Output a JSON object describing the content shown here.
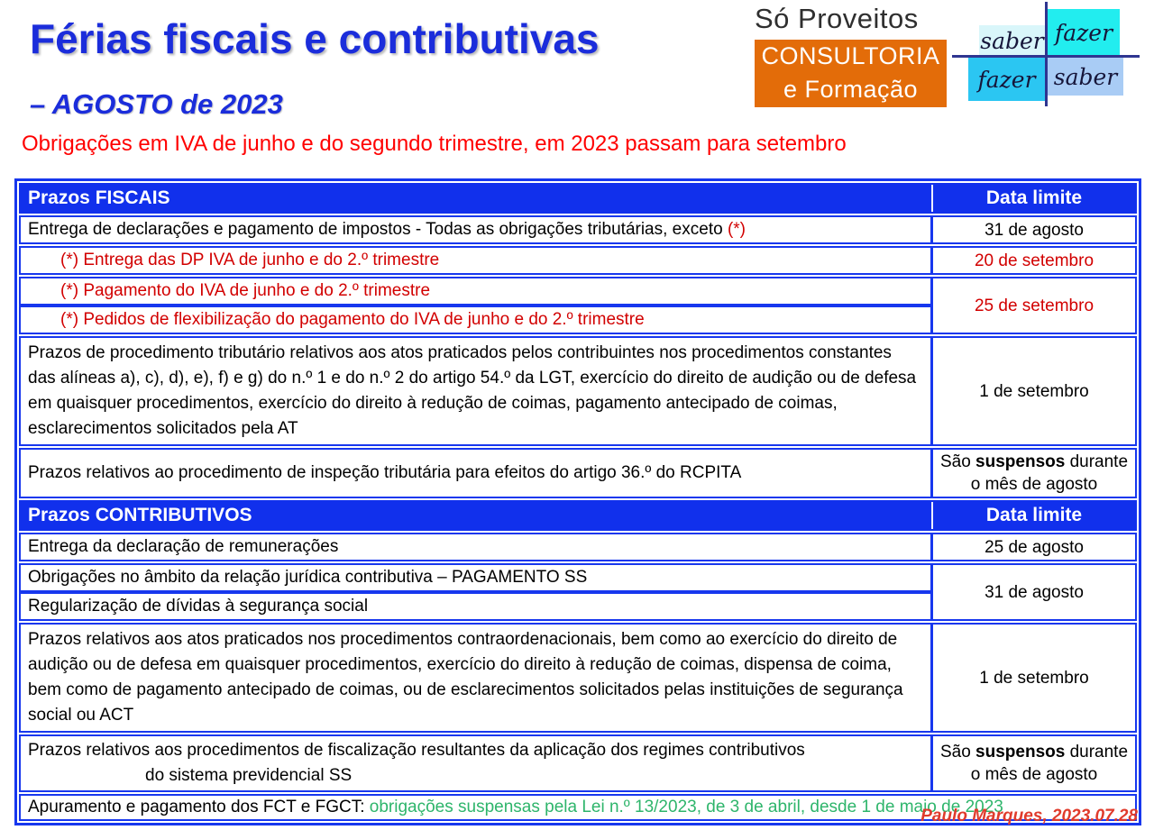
{
  "colors": {
    "title_blue": "#1B2DDB",
    "accent_blue": "#1130EC",
    "border_blue": "#1737EE",
    "notice_red": "#FF0000",
    "table_red": "#D20000",
    "green": "#2EB56B",
    "credit_red": "#E03B2C",
    "logo_orange": "#E36C09",
    "navy": "#2F3590",
    "quad_tl": "#D9F6FA",
    "quad_tr": "#22EDEF",
    "quad_bl": "#2BC6F2",
    "quad_br": "#A9CCF5"
  },
  "header": {
    "title": "Férias fiscais e contributivas",
    "subtitle": "– AGOSTO de 2023",
    "notice": "Obrigações em IVA de junho e do segundo trimestre, em 2023 passam para setembro"
  },
  "logo": {
    "name": "Só Proveitos",
    "box_line1": "CONSULTORIA",
    "box_line2": "e Formação",
    "motto": {
      "top_left": "saber",
      "top_right": "fazer",
      "bottom_left": "fazer",
      "bottom_right": "saber"
    }
  },
  "table": {
    "sections": {
      "fiscal": {
        "label": "Prazos FISCAIS",
        "deadline_header": "Data limite"
      },
      "contributivo": {
        "label": "Prazos CONTRIBUTIVOS",
        "deadline_header": "Data limite"
      }
    },
    "rows": {
      "fiscal1": {
        "text": "Entrega de declarações e pagamento de impostos - Todas as obrigações tributárias, exceto ",
        "marker": "(*)",
        "deadline": "31 de agosto"
      },
      "fiscal2": {
        "text": "(*) Entrega das DP IVA de junho e do 2.º trimestre",
        "deadline": "20 de setembro"
      },
      "fiscal3a": {
        "text": "(*) Pagamento do IVA de junho e do 2.º trimestre"
      },
      "fiscal3b": {
        "text": "(*) Pedidos de flexibilização do pagamento do IVA de junho e do 2.º trimestre"
      },
      "fiscal3_deadline": "25 de setembro",
      "fiscal4": {
        "text": "Prazos de procedimento tributário relativos aos atos praticados pelos contribuintes nos procedimentos constantes das alíneas a), c), d), e), f) e g) do n.º 1 e do n.º 2 do artigo 54.º da LGT, exercício do direito de audição ou de defesa em quaisquer procedimentos, exercício do direito à redução de coimas, pagamento antecipado de coimas, esclarecimentos solicitados pela AT",
        "deadline": "1 de setembro"
      },
      "fiscal5": {
        "text": "Prazos relativos ao procedimento de inspeção tributária para efeitos do artigo 36.º do RCPITA",
        "deadline_pre": "São ",
        "deadline_bold": "suspensos",
        "deadline_post": " durante o mês de agosto"
      },
      "contrib1": {
        "text": "Entrega da declaração de remunerações",
        "deadline": "25 de agosto"
      },
      "contrib2a": {
        "text": "Obrigações no âmbito da relação jurídica contributiva – PAGAMENTO SS"
      },
      "contrib2b": {
        "text": "Regularização de dívidas à segurança social"
      },
      "contrib2_deadline": "31 de agosto",
      "contrib3": {
        "text": "Prazos relativos aos atos praticados nos procedimentos contraordenacionais, bem como ao exercício do direito de audição ou de defesa em quaisquer procedimentos, exercício do direito à redução de coimas, dispensa de coima, bem como de pagamento antecipado de coimas, ou de esclarecimentos solicitados pelas instituições de segurança social ou ACT",
        "deadline": "1 de setembro"
      },
      "contrib4": {
        "line1": "Prazos relativos aos procedimentos de fiscalização resultantes da aplicação dos regimes contributivos",
        "line2": "do sistema previdencial SS",
        "deadline_pre": "São ",
        "deadline_bold": "suspensos",
        "deadline_post": " durante o mês de agosto"
      },
      "contrib5": {
        "text": "Apuramento e pagamento dos FCT e FGCT: ",
        "highlight": "obrigações suspensas pela Lei n.º 13/2023, de 3 de abril, desde 1 de maio de 2023"
      }
    }
  },
  "footer": {
    "credit": "Paulo Marques, 2023.07.28"
  }
}
